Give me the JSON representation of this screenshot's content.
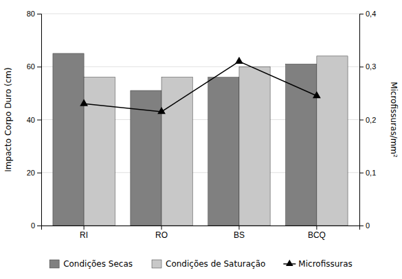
{
  "chart_data": {
    "type": "bar",
    "categories": [
      "RI",
      "RO",
      "BS",
      "BCQ"
    ],
    "series": [
      {
        "name": "Condições Secas",
        "color": "#808080",
        "values": [
          65,
          51,
          56,
          61
        ]
      },
      {
        "name": "Condições de Saturação",
        "color": "#c8c8c8",
        "values": [
          56,
          56,
          60,
          64
        ]
      },
      {
        "name": "Microfissuras",
        "color": "#000000",
        "type": "line",
        "axis": "y2",
        "marker": "triangle",
        "values": [
          0.23,
          0.215,
          0.31,
          0.245
        ]
      }
    ],
    "ylabel": "Impacto Corpo Duro (cm)",
    "y2label": "Microfissuras/mm²",
    "ylim": [
      0,
      80
    ],
    "yticks": [
      0,
      20,
      40,
      60,
      80
    ],
    "y2lim": [
      0,
      0.4
    ],
    "y2ticks": [
      0,
      {
        "value": 0.1,
        "label": "0,1"
      },
      {
        "value": 0.2,
        "label": "0,2"
      },
      {
        "value": 0.3,
        "label": "0,3"
      },
      {
        "value": 0.4,
        "label": "0,4"
      }
    ],
    "grid": true,
    "legend": "bottom"
  }
}
